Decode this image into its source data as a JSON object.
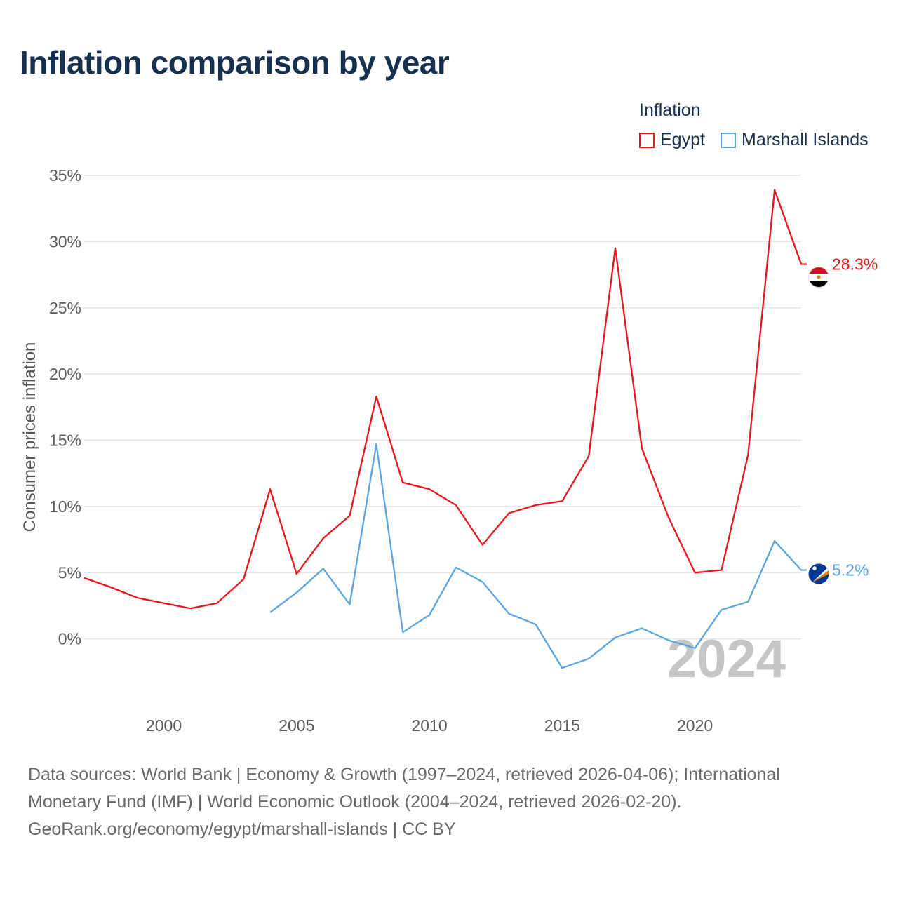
{
  "title": "Inflation comparison by year",
  "legend": {
    "title": "Inflation",
    "items": [
      {
        "name": "Egypt",
        "color": "#e8161b"
      },
      {
        "name": "Marshall Islands",
        "color": "#5ba4e2"
      }
    ]
  },
  "year_watermark": "2024",
  "footer": {
    "line1": "Data sources: World Bank | Economy & Growth (1997–2024, retrieved 2026-04-06); International",
    "line2": "Monetary Fund (IMF) | World Economic Outlook (2004–2024, retrieved 2026-02-20).",
    "line3": "GeoRank.org/economy/egypt/marshall-islands | CC BY"
  },
  "chart_data": {
    "type": "line",
    "title": "Inflation comparison by year",
    "xlabel": "",
    "ylabel": "Consumer prices inflation",
    "xlim": [
      1997,
      2024
    ],
    "ylim": [
      -5,
      35
    ],
    "x_ticks": [
      2000,
      2005,
      2010,
      2015,
      2020
    ],
    "x_tick_labels": [
      "2000",
      "2005",
      "2010",
      "2015",
      "2020"
    ],
    "y_ticks": [
      0,
      5,
      10,
      15,
      20,
      25,
      30,
      35
    ],
    "y_tick_labels": [
      "0%",
      "5%",
      "10%",
      "15%",
      "20%",
      "25%",
      "30%",
      "35%"
    ],
    "grid": true,
    "legend_position": "top-right",
    "series": [
      {
        "name": "Egypt",
        "color": "#e8161b",
        "end_label": "28.3%",
        "x": [
          1997,
          1998,
          1999,
          2000,
          2001,
          2002,
          2003,
          2004,
          2005,
          2006,
          2007,
          2008,
          2009,
          2010,
          2011,
          2012,
          2013,
          2014,
          2015,
          2016,
          2017,
          2018,
          2019,
          2020,
          2021,
          2022,
          2023,
          2024
        ],
        "values": [
          4.6,
          3.9,
          3.1,
          2.7,
          2.3,
          2.7,
          4.5,
          11.3,
          4.9,
          7.6,
          9.3,
          18.3,
          11.8,
          11.3,
          10.1,
          7.1,
          9.5,
          10.1,
          10.4,
          13.8,
          29.5,
          14.4,
          9.2,
          5.0,
          5.2,
          13.9,
          33.9,
          28.3
        ]
      },
      {
        "name": "Marshall Islands",
        "color": "#5ba4e2",
        "end_label": "5.2%",
        "x": [
          2004,
          2005,
          2006,
          2007,
          2008,
          2009,
          2010,
          2011,
          2012,
          2013,
          2014,
          2015,
          2016,
          2017,
          2018,
          2019,
          2020,
          2021,
          2022,
          2023,
          2024
        ],
        "values": [
          2.0,
          3.5,
          5.3,
          2.6,
          14.7,
          0.5,
          1.8,
          5.4,
          4.3,
          1.9,
          1.1,
          -2.2,
          -1.5,
          0.1,
          0.8,
          -0.1,
          -0.7,
          2.2,
          2.8,
          7.4,
          5.2
        ]
      }
    ]
  }
}
